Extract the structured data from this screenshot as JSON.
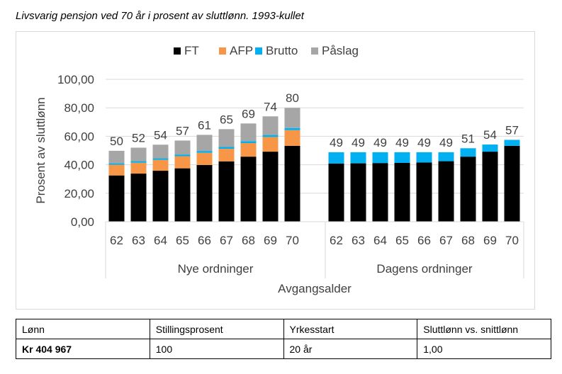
{
  "caption": "Livsvarig pensjon ved 70 år i prosent av sluttlønn. 1993-kullet",
  "chart_data": {
    "type": "bar",
    "stacked": true,
    "ylabel": "Prosent av sluttlønn",
    "xlabel": "Avgangsalder",
    "ylim": [
      0,
      100
    ],
    "yticks": [
      "0,00",
      "20,00",
      "40,00",
      "60,00",
      "80,00",
      "100,00"
    ],
    "ytick_values": [
      0,
      20,
      40,
      60,
      80,
      100
    ],
    "grid": true,
    "legend_position": "top-center",
    "legend": [
      {
        "name": "FT",
        "color": "#000000"
      },
      {
        "name": "AFP",
        "color": "#f79646"
      },
      {
        "name": "Brutto",
        "color": "#00b0f0"
      },
      {
        "name": "Påslag",
        "color": "#a6a6a6"
      }
    ],
    "groups": [
      {
        "label": "Nye ordninger",
        "categories": [
          "62",
          "63",
          "64",
          "65",
          "66",
          "67",
          "68",
          "69",
          "70"
        ],
        "totals": [
          "50",
          "52",
          "54",
          "57",
          "61",
          "65",
          "69",
          "74",
          "80"
        ],
        "series": [
          {
            "name": "FT",
            "values": [
              32.5,
              33.8,
              35.8,
              37.5,
              39.8,
              42.4,
              45.7,
              49.2,
              53.3
            ]
          },
          {
            "name": "AFP",
            "values": [
              7.5,
              7.6,
              7.6,
              8.5,
              8.6,
              8.8,
              9.5,
              10.3,
              11.0
            ]
          },
          {
            "name": "Brutto",
            "values": [
              1.0,
              1.1,
              1.1,
              1.2,
              1.3,
              1.3,
              1.4,
              1.4,
              1.5
            ]
          },
          {
            "name": "Påslag",
            "values": [
              8.8,
              9.5,
              9.6,
              9.8,
              11.3,
              12.5,
              12.4,
              13.1,
              14.2
            ]
          }
        ]
      },
      {
        "label": "Dagens ordninger",
        "categories": [
          "62",
          "63",
          "64",
          "65",
          "66",
          "67",
          "68",
          "69",
          "70"
        ],
        "totals": [
          "49",
          "49",
          "49",
          "49",
          "49",
          "49",
          "51",
          "54",
          "57"
        ],
        "series": [
          {
            "name": "FT",
            "values": [
              40.8,
              41.0,
              41.2,
              41.3,
              41.6,
              42.5,
              45.7,
              49.2,
              53.3
            ]
          },
          {
            "name": "AFP",
            "values": [
              0,
              0,
              0,
              0,
              0,
              0,
              0,
              0,
              0
            ]
          },
          {
            "name": "Brutto",
            "values": [
              8.0,
              7.8,
              7.6,
              7.5,
              7.2,
              6.3,
              5.9,
              5.0,
              4.2
            ]
          },
          {
            "name": "Påslag",
            "values": [
              0,
              0,
              0,
              0,
              0,
              0,
              0,
              0,
              0
            ]
          }
        ]
      }
    ]
  },
  "info_table": {
    "headers": [
      "Lønn",
      "Stillingsprosent",
      "Yrkesstart",
      "Sluttlønn vs. snittlønn"
    ],
    "values": [
      "Kr 404 967",
      "100",
      "20 år",
      "1,00"
    ]
  }
}
